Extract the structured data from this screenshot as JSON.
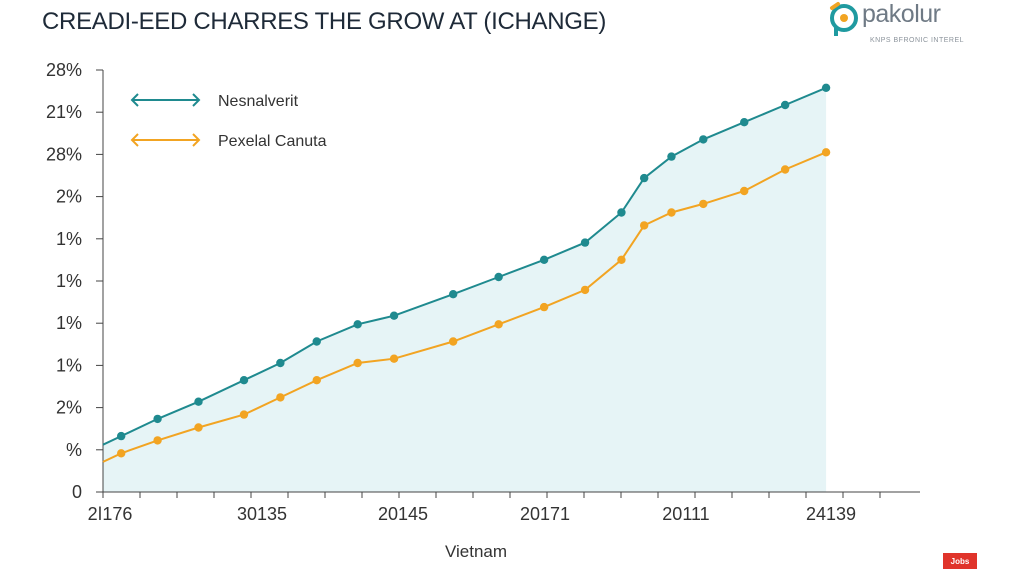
{
  "logo": {
    "name": "pakolur",
    "tagline": "KNPS BFRONIC INTEREL"
  },
  "brand_badge": "Jobs",
  "chart_data": {
    "type": "line",
    "title": "CREADI-EED CHARRES THE GROW AT (ІCHANGE)",
    "xlabel": "Vietnam",
    "ylabel": "",
    "x_tick_labels": [
      "2ǀ176",
      "30135",
      "20145",
      "20171",
      "20111",
      "24139"
    ],
    "y_tick_labels": [
      "28%",
      "21%",
      "28%",
      "2%",
      "1%",
      "1%",
      "1%",
      "1%",
      "2%",
      "%",
      "0"
    ],
    "ylim": [
      0,
      10
    ],
    "legend_position": "top-left",
    "grid": false,
    "series": [
      {
        "name": "Nesnalverit",
        "color": "#1f8a8f",
        "area_fill": "#e6f4f6",
        "x": [
          0,
          0.4,
          1.2,
          2.1,
          3.1,
          3.9,
          4.7,
          5.6,
          6.4,
          7.7,
          8.7,
          9.7,
          10.6,
          11.4,
          11.9,
          12.5,
          13.2,
          14.1,
          15.0,
          15.9
        ],
        "y": [
          1.1,
          1.3,
          1.7,
          2.1,
          2.6,
          3.0,
          3.5,
          3.9,
          4.1,
          4.6,
          5.0,
          5.4,
          5.8,
          6.5,
          7.3,
          7.8,
          8.2,
          8.6,
          9.0,
          9.4
        ]
      },
      {
        "name": "Pexelal Canuta",
        "color": "#f2a422",
        "x": [
          0,
          0.4,
          1.2,
          2.1,
          3.1,
          3.9,
          4.7,
          5.6,
          6.4,
          7.7,
          8.7,
          9.7,
          10.6,
          11.4,
          11.9,
          12.5,
          13.2,
          14.1,
          15.0,
          15.9
        ],
        "y": [
          0.7,
          0.9,
          1.2,
          1.5,
          1.8,
          2.2,
          2.6,
          3.0,
          3.1,
          3.5,
          3.9,
          4.3,
          4.7,
          5.4,
          6.2,
          6.5,
          6.7,
          7.0,
          7.5,
          7.9
        ]
      }
    ]
  }
}
